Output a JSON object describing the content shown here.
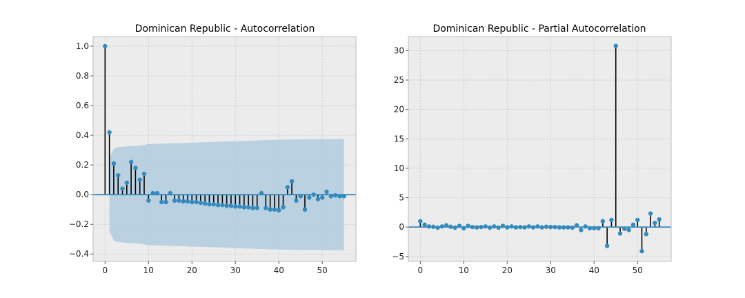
{
  "chart_data": [
    {
      "type": "stem",
      "title": "Dominican Republic - Autocorrelation",
      "xlabel": "",
      "ylabel": "",
      "xlim": [
        -2.75,
        57.75
      ],
      "ylim": [
        -0.45,
        1.065
      ],
      "xticks": [
        0,
        10,
        20,
        30,
        40,
        50
      ],
      "yticks": [
        -0.4,
        -0.2,
        0.0,
        0.2,
        0.4,
        0.6,
        0.8,
        1.0
      ],
      "yticklabels": [
        "−0.4",
        "−0.2",
        "0.0",
        "0.2",
        "0.4",
        "0.6",
        "0.8",
        "1.0"
      ],
      "grid": true,
      "confidence_band": {
        "x": [
          1,
          2,
          3,
          5,
          8,
          10,
          15,
          20,
          25,
          30,
          35,
          40,
          45,
          50,
          55
        ],
        "upper": [
          0.245,
          0.31,
          0.32,
          0.325,
          0.33,
          0.34,
          0.345,
          0.35,
          0.355,
          0.36,
          0.365,
          0.37,
          0.372,
          0.374,
          0.375
        ],
        "lower": [
          -0.245,
          -0.31,
          -0.32,
          -0.325,
          -0.33,
          -0.34,
          -0.345,
          -0.35,
          -0.355,
          -0.36,
          -0.365,
          -0.37,
          -0.372,
          -0.374,
          -0.375
        ]
      },
      "colors": {
        "marker": "#348abd",
        "stem": "#000000",
        "baseline": "#348abd",
        "band": "#a9c8de"
      },
      "lags": [
        0,
        1,
        2,
        3,
        4,
        5,
        6,
        7,
        8,
        9,
        10,
        11,
        12,
        13,
        14,
        15,
        16,
        17,
        18,
        19,
        20,
        21,
        22,
        23,
        24,
        25,
        26,
        27,
        28,
        29,
        30,
        31,
        32,
        33,
        34,
        35,
        36,
        37,
        38,
        39,
        40,
        41,
        42,
        43,
        44,
        45,
        46,
        47,
        48,
        49,
        50,
        51,
        52,
        53,
        54,
        55
      ],
      "values": [
        1.0,
        0.42,
        0.21,
        0.13,
        0.04,
        0.08,
        0.22,
        0.18,
        0.1,
        0.14,
        -0.04,
        0.01,
        0.01,
        -0.05,
        -0.05,
        0.01,
        -0.04,
        -0.04,
        -0.045,
        -0.045,
        -0.05,
        -0.05,
        -0.055,
        -0.06,
        -0.065,
        -0.065,
        -0.07,
        -0.07,
        -0.075,
        -0.075,
        -0.08,
        -0.08,
        -0.085,
        -0.085,
        -0.09,
        -0.09,
        0.01,
        -0.09,
        -0.1,
        -0.1,
        -0.105,
        -0.085,
        0.05,
        0.09,
        -0.04,
        -0.01,
        -0.1,
        -0.02,
        0.0,
        -0.03,
        -0.02,
        0.02,
        -0.01,
        -0.005,
        -0.01,
        -0.01
      ]
    },
    {
      "type": "stem",
      "title": "Dominican Republic - Partial Autocorrelation",
      "xlabel": "",
      "ylabel": "",
      "xlim": [
        -2.75,
        57.75
      ],
      "ylim": [
        -5.85,
        32.4
      ],
      "xticks": [
        0,
        10,
        20,
        30,
        40,
        50
      ],
      "yticks": [
        -5,
        0,
        5,
        10,
        15,
        20,
        25,
        30
      ],
      "yticklabels": [
        "−5",
        "0",
        "5",
        "10",
        "15",
        "20",
        "25",
        "30"
      ],
      "grid": true,
      "colors": {
        "marker": "#348abd",
        "stem": "#000000",
        "baseline": "#348abd",
        "band": "#a9c8de"
      },
      "lags": [
        0,
        1,
        2,
        3,
        4,
        5,
        6,
        7,
        8,
        9,
        10,
        11,
        12,
        13,
        14,
        15,
        16,
        17,
        18,
        19,
        20,
        21,
        22,
        23,
        24,
        25,
        26,
        27,
        28,
        29,
        30,
        31,
        32,
        33,
        34,
        35,
        36,
        37,
        38,
        39,
        40,
        41,
        42,
        43,
        44,
        45,
        46,
        47,
        48,
        49,
        50,
        51,
        52,
        53,
        54,
        55
      ],
      "values": [
        1.0,
        0.4,
        0.1,
        0.05,
        -0.1,
        0.1,
        0.3,
        0.05,
        -0.1,
        0.2,
        -0.2,
        0.2,
        0.0,
        -0.05,
        0.0,
        0.1,
        -0.1,
        0.1,
        -0.1,
        0.2,
        -0.05,
        0.1,
        -0.05,
        0.0,
        -0.05,
        0.1,
        -0.05,
        0.1,
        -0.05,
        0.05,
        0.0,
        0.0,
        -0.05,
        -0.05,
        -0.05,
        -0.1,
        0.3,
        -0.5,
        0.1,
        -0.2,
        -0.2,
        -0.2,
        1.0,
        -3.2,
        1.2,
        30.8,
        -1.1,
        -0.3,
        -0.5,
        0.4,
        1.2,
        -4.1,
        -1.2,
        2.3,
        0.7,
        1.3
      ]
    }
  ]
}
